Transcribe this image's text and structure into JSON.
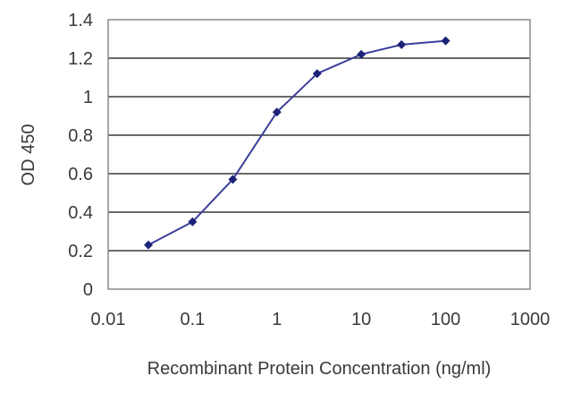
{
  "chart_data": {
    "type": "line",
    "title": "",
    "xlabel": "Recombinant Protein Concentration (ng/ml)",
    "ylabel": "OD 450",
    "x_scale": "log",
    "xlim": [
      0.01,
      1000
    ],
    "ylim": [
      0,
      1.4
    ],
    "x_ticks": [
      "0.01",
      "0.1",
      "1",
      "10",
      "100",
      "1000"
    ],
    "y_ticks": [
      "0",
      "0.2",
      "0.4",
      "0.6",
      "0.8",
      "1",
      "1.2",
      "1.4"
    ],
    "grid": "horizontal",
    "series": [
      {
        "x": [
          0.03,
          0.1,
          0.3,
          1,
          3,
          10,
          30,
          100
        ],
        "y": [
          0.23,
          0.35,
          0.57,
          0.92,
          1.12,
          1.22,
          1.27,
          1.29
        ]
      }
    ],
    "colors": {
      "line": "#3b3f9a",
      "marker": "#1c2378",
      "grid": "#111111",
      "plot_border": "#8a8a8a",
      "plot_background": "#ffffff"
    }
  }
}
